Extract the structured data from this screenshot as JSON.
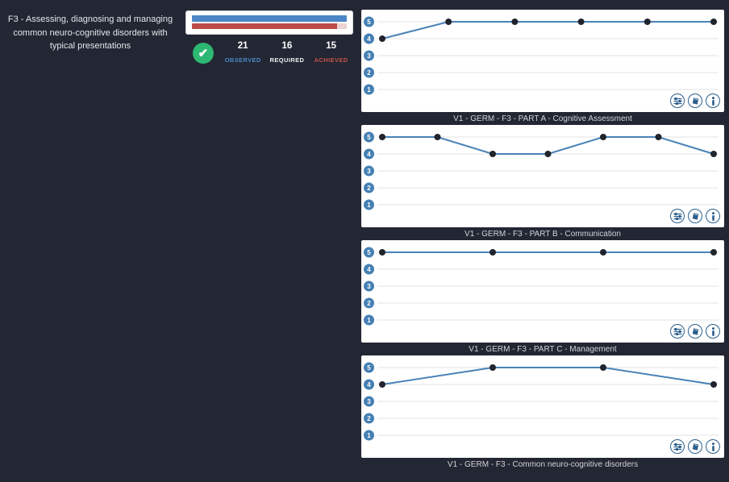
{
  "page": {
    "title": "F3 - Assessing, diagnosing and managing common neuro-cognitive disorders with typical presentations"
  },
  "summary": {
    "observed_value": "21",
    "required_value": "16",
    "achieved_value": "15",
    "observed_label": "OBSERVED",
    "required_label": "REQUIRED",
    "achieved_label": "ACHIEVED",
    "observed_bar_pct": 100,
    "achieved_bar_pct": 93.75,
    "status_icon": "check-icon",
    "colors": {
      "observed_blue": "#4c87c7",
      "achieved_red": "#bf4b48",
      "achieved_track_pink": "#ecd2d2",
      "check_green": "#2db873",
      "background_dark": "#232733"
    }
  },
  "card_icons": [
    {
      "name": "sliders-icon"
    },
    {
      "name": "book-icon"
    },
    {
      "name": "info-icon"
    }
  ],
  "chart_data": [
    {
      "type": "line",
      "title": "V1 - GERM - F3 - PART A - Cognitive Assessment",
      "values": [
        4,
        5,
        5,
        5,
        5,
        5
      ],
      "yticks": [
        5,
        4,
        3,
        2,
        1
      ],
      "ylim": [
        1,
        5
      ],
      "grid": true,
      "line_color": "#4a82b8",
      "marker_color": "#20242c",
      "ytick_badge_color": "#4580b4"
    },
    {
      "type": "line",
      "title": "V1 - GERM - F3 - PART B - Communication",
      "values": [
        5,
        5,
        4,
        4,
        5,
        5,
        4
      ],
      "yticks": [
        5,
        4,
        3,
        2,
        1
      ],
      "ylim": [
        1,
        5
      ],
      "grid": true,
      "line_color": "#4a82b8",
      "marker_color": "#20242c",
      "ytick_badge_color": "#4580b4"
    },
    {
      "type": "line",
      "title": "V1 - GERM - F3 - PART C - Management",
      "values": [
        5,
        5,
        5,
        5
      ],
      "yticks": [
        5,
        4,
        3,
        2,
        1
      ],
      "ylim": [
        1,
        5
      ],
      "grid": true,
      "line_color": "#4a82b8",
      "marker_color": "#20242c",
      "ytick_badge_color": "#4580b4"
    },
    {
      "type": "line",
      "title": "V1 - GERM - F3 - Common neuro-cognitive disorders",
      "values": [
        4,
        5,
        5,
        4
      ],
      "yticks": [
        5,
        4,
        3,
        2,
        1
      ],
      "ylim": [
        1,
        5
      ],
      "grid": true,
      "line_color": "#4a82b8",
      "marker_color": "#20242c",
      "ytick_badge_color": "#4580b4"
    }
  ]
}
